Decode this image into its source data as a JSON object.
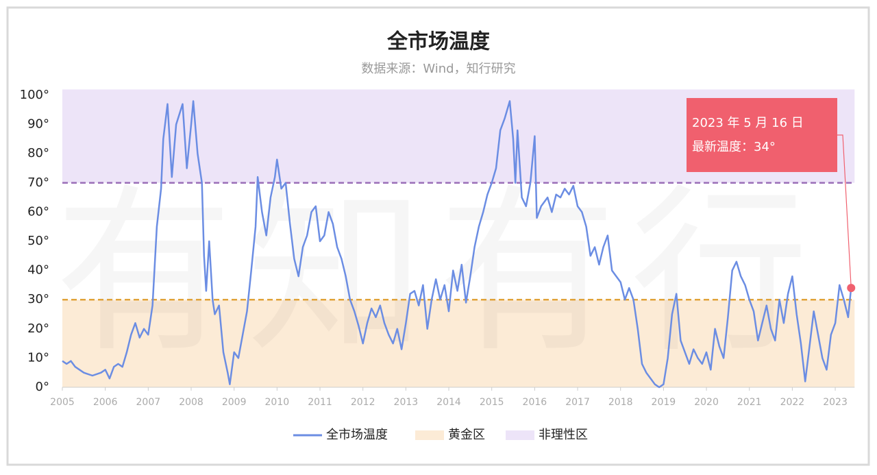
{
  "chart_data": {
    "type": "line",
    "title": "全市场温度",
    "subtitle": "数据来源：Wind，知行研究",
    "watermark": "有知有行",
    "xlim": [
      2005,
      2023.45
    ],
    "xticks": [
      2005,
      2006,
      2007,
      2008,
      2009,
      2010,
      2011,
      2012,
      2013,
      2014,
      2015,
      2016,
      2017,
      2018,
      2019,
      2020,
      2021,
      2022,
      2023
    ],
    "ylim": [
      0,
      102
    ],
    "yticks": [
      {
        "value": 0,
        "label": "0°"
      },
      {
        "value": 10,
        "label": "10°"
      },
      {
        "value": 20,
        "label": "20°"
      },
      {
        "value": 30,
        "label": "30°"
      },
      {
        "value": 40,
        "label": "40°"
      },
      {
        "value": 50,
        "label": "50°"
      },
      {
        "value": 60,
        "label": "60°"
      },
      {
        "value": 70,
        "label": "70°"
      },
      {
        "value": 80,
        "label": "80°"
      },
      {
        "value": 90,
        "label": "90°"
      },
      {
        "value": 100,
        "label": "100°"
      }
    ],
    "legend": "bottom",
    "bands": [
      {
        "name": "黄金区",
        "from": 0,
        "to": 30,
        "color": "#fcebd6",
        "line_color": "#e0a33a"
      },
      {
        "name": "非理性区",
        "from": 70,
        "to": 102,
        "color": "#ede4f8",
        "line_color": "#9b6fb8"
      }
    ],
    "x": [
      2005.0,
      2005.1,
      2005.2,
      2005.3,
      2005.5,
      2005.7,
      2005.9,
      2006.0,
      2006.1,
      2006.2,
      2006.3,
      2006.4,
      2006.5,
      2006.6,
      2006.7,
      2006.8,
      2006.9,
      2007.0,
      2007.1,
      2007.2,
      2007.3,
      2007.35,
      2007.45,
      2007.55,
      2007.65,
      2007.8,
      2007.9,
      2008.0,
      2008.05,
      2008.15,
      2008.25,
      2008.3,
      2008.35,
      2008.42,
      2008.5,
      2008.55,
      2008.65,
      2008.75,
      2008.85,
      2008.9,
      2009.0,
      2009.1,
      2009.2,
      2009.3,
      2009.4,
      2009.5,
      2009.55,
      2009.65,
      2009.75,
      2009.85,
      2009.95,
      2010.0,
      2010.1,
      2010.2,
      2010.3,
      2010.4,
      2010.5,
      2010.6,
      2010.7,
      2010.8,
      2010.9,
      2011.0,
      2011.1,
      2011.2,
      2011.3,
      2011.4,
      2011.5,
      2011.6,
      2011.7,
      2011.8,
      2011.9,
      2012.0,
      2012.1,
      2012.2,
      2012.3,
      2012.4,
      2012.5,
      2012.6,
      2012.7,
      2012.8,
      2012.9,
      2013.0,
      2013.1,
      2013.2,
      2013.3,
      2013.4,
      2013.5,
      2013.6,
      2013.7,
      2013.8,
      2013.9,
      2014.0,
      2014.1,
      2014.2,
      2014.3,
      2014.4,
      2014.5,
      2014.6,
      2014.7,
      2014.8,
      2014.9,
      2015.0,
      2015.1,
      2015.2,
      2015.3,
      2015.42,
      2015.5,
      2015.55,
      2015.6,
      2015.7,
      2015.8,
      2015.9,
      2016.0,
      2016.05,
      2016.15,
      2016.3,
      2016.4,
      2016.5,
      2016.6,
      2016.7,
      2016.8,
      2016.9,
      2017.0,
      2017.1,
      2017.2,
      2017.3,
      2017.4,
      2017.5,
      2017.6,
      2017.7,
      2017.8,
      2017.9,
      2018.0,
      2018.1,
      2018.2,
      2018.3,
      2018.4,
      2018.5,
      2018.6,
      2018.7,
      2018.8,
      2018.9,
      2019.0,
      2019.1,
      2019.2,
      2019.3,
      2019.4,
      2019.5,
      2019.6,
      2019.7,
      2019.8,
      2019.9,
      2020.0,
      2020.1,
      2020.2,
      2020.3,
      2020.4,
      2020.5,
      2020.6,
      2020.7,
      2020.8,
      2020.9,
      2021.0,
      2021.1,
      2021.2,
      2021.3,
      2021.4,
      2021.5,
      2021.6,
      2021.7,
      2021.8,
      2021.9,
      2022.0,
      2022.1,
      2022.2,
      2022.3,
      2022.4,
      2022.5,
      2022.6,
      2022.7,
      2022.8,
      2022.9,
      2023.0,
      2023.1,
      2023.2,
      2023.3,
      2023.37
    ],
    "series": [
      {
        "name": "全市场温度",
        "color": "#6b8de3",
        "values": [
          9,
          8,
          9,
          7,
          5,
          4,
          5,
          6,
          3,
          7,
          8,
          7,
          12,
          18,
          22,
          17,
          20,
          18,
          28,
          55,
          68,
          85,
          97,
          72,
          90,
          97,
          75,
          90,
          98,
          80,
          70,
          45,
          33,
          50,
          30,
          25,
          28,
          12,
          5,
          1,
          12,
          10,
          18,
          26,
          40,
          55,
          72,
          60,
          52,
          65,
          72,
          78,
          68,
          70,
          56,
          44,
          38,
          48,
          52,
          60,
          62,
          50,
          52,
          60,
          56,
          48,
          44,
          38,
          30,
          26,
          21,
          15,
          22,
          27,
          24,
          28,
          22,
          18,
          15,
          20,
          13,
          22,
          32,
          33,
          28,
          35,
          20,
          30,
          37,
          30,
          35,
          26,
          40,
          33,
          42,
          29,
          38,
          48,
          55,
          60,
          66,
          70,
          75,
          88,
          92,
          98,
          85,
          70,
          88,
          65,
          62,
          70,
          86,
          58,
          62,
          65,
          60,
          66,
          65,
          68,
          66,
          69,
          62,
          60,
          55,
          45,
          48,
          42,
          48,
          52,
          40,
          38,
          36,
          30,
          34,
          30,
          20,
          8,
          5,
          3,
          1,
          0,
          1,
          10,
          25,
          32,
          16,
          12,
          8,
          13,
          10,
          8,
          12,
          6,
          20,
          14,
          10,
          24,
          40,
          43,
          38,
          35,
          30,
          26,
          16,
          22,
          28,
          20,
          16,
          30,
          22,
          32,
          38,
          25,
          15,
          2,
          14,
          26,
          18,
          10,
          6,
          18,
          22,
          35,
          30,
          24,
          34
        ]
      }
    ],
    "annotation": {
      "marker_color": "#f0606e",
      "lines": [
        "2023 年 5 月 16 日",
        "最新温度：34°"
      ]
    }
  }
}
